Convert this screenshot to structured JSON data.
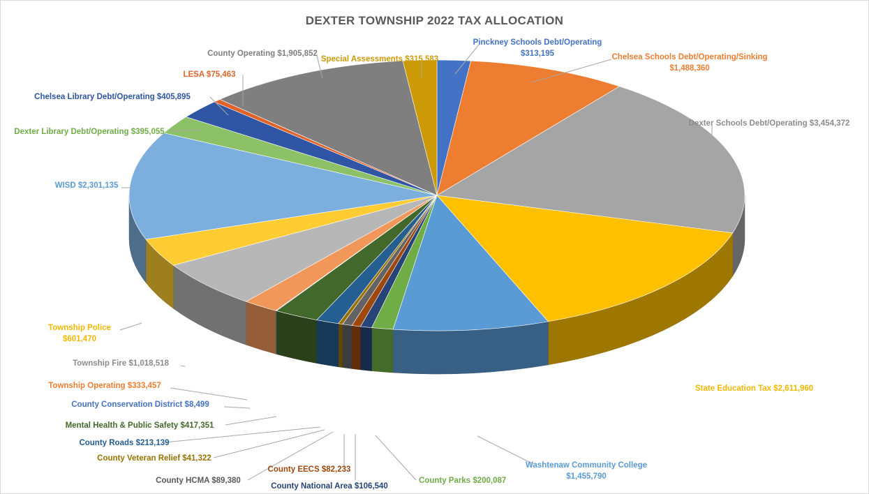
{
  "chart_data": {
    "type": "pie",
    "title": "DEXTER TOWNSHIP 2022 TAX ALLOCATION",
    "slices": [
      {
        "name": "Pinckney Schools Debt/Operating",
        "value": 313195,
        "display": "$313,195",
        "color": "#4472c4",
        "label_lines": [
          "Pinckney Schools Debt/Operating",
          "$313,195"
        ]
      },
      {
        "name": "Chelsea Schools Debt/Operating/Sinking",
        "value": 1488360,
        "display": "$1,488,360",
        "color": "#ed7d31",
        "label_lines": [
          "Chelsea Schools Debt/Operating/Sinking",
          "$1,488,360"
        ]
      },
      {
        "name": "Dexter Schools Debt/Operating",
        "value": 3454372,
        "display": "$3,454,372",
        "color": "#a5a5a5",
        "label_lines": [
          "Dexter Schools Debt/Operating $3,454,372"
        ]
      },
      {
        "name": "State Education Tax",
        "value": 2611960,
        "display": "$2,611,960",
        "color": "#ffc000",
        "label_lines": [
          "State Education Tax $2,611,960"
        ]
      },
      {
        "name": "Washtenaw Community College",
        "value": 1455790,
        "display": "$1,455,790",
        "color": "#5b9bd5",
        "label_lines": [
          "Washtenaw Community College",
          "$1,455,790"
        ]
      },
      {
        "name": "County Parks",
        "value": 200087,
        "display": "$200,087",
        "color": "#70ad47",
        "label_lines": [
          "County Parks $200,087"
        ]
      },
      {
        "name": "County National Area",
        "value": 106540,
        "display": "$106,540",
        "color": "#264478",
        "label_lines": [
          "County National Area $106,540"
        ]
      },
      {
        "name": "County EECS",
        "value": 82233,
        "display": "$82,233",
        "color": "#9e480e",
        "label_lines": [
          "County EECS $82,233"
        ]
      },
      {
        "name": "County HCMA",
        "value": 89380,
        "display": "$89,380",
        "color": "#636363",
        "label_lines": [
          "County HCMA $89,380"
        ]
      },
      {
        "name": "County Veteran Relief",
        "value": 41322,
        "display": "$41,322",
        "color": "#997300",
        "label_lines": [
          "County Veteran Relief $41,322"
        ]
      },
      {
        "name": "County Roads",
        "value": 213139,
        "display": "$213,139",
        "color": "#255e91",
        "label_lines": [
          "County Roads $213,139"
        ]
      },
      {
        "name": "Mental Health & Public Safety",
        "value": 417351,
        "display": "$417,351",
        "color": "#43682b",
        "label_lines": [
          "Mental Health & Public Safety $417,351"
        ]
      },
      {
        "name": "County Conservation District",
        "value": 8499,
        "display": "$8,499",
        "color": "#698ed0",
        "label_lines": [
          "County Conservation District $8,499"
        ]
      },
      {
        "name": "Township Operating",
        "value": 333457,
        "display": "$333,457",
        "color": "#f1975a",
        "label_lines": [
          "Township Operating $333,457"
        ]
      },
      {
        "name": "Township Fire",
        "value": 1018518,
        "display": "$1,018,518",
        "color": "#b7b7b7",
        "label_lines": [
          "Township Fire $1,018,518"
        ]
      },
      {
        "name": "Township Police",
        "value": 601470,
        "display": "$601,470",
        "color": "#ffcd33",
        "label_lines": [
          "Township Police",
          "$601,470"
        ]
      },
      {
        "name": "WISD",
        "value": 2301135,
        "display": "$2,301,135",
        "color": "#7cafdd",
        "label_lines": [
          "WISD $2,301,135"
        ]
      },
      {
        "name": "Dexter Library Debt/Operating",
        "value": 395055,
        "display": "$395,055",
        "color": "#8cc168",
        "label_lines": [
          "Dexter Library Debt/Operating $395,055"
        ]
      },
      {
        "name": "Chelsea Library Debt/Operating",
        "value": 405895,
        "display": "$405,895",
        "color": "#2f55a4",
        "label_lines": [
          "Chelsea Library Debt/Operating $405,895"
        ]
      },
      {
        "name": "LESA",
        "value": 75463,
        "display": "$75,463",
        "color": "#e0642a",
        "label_lines": [
          "LESA $75,463"
        ]
      },
      {
        "name": "County Operating",
        "value": 1905852,
        "display": "$1,905,852",
        "color": "#7f7f7f",
        "label_lines": [
          "County Operating $1,905,852"
        ]
      },
      {
        "name": "Special Assessments",
        "value": 315583,
        "display": "$315,583",
        "color": "#cc9a06",
        "label_lines": [
          "Special Assessments $315,583"
        ]
      }
    ],
    "label_colors": {
      "Pinckney Schools Debt/Operating": "#4472c4",
      "Chelsea Schools Debt/Operating/Sinking": "#ed7d31",
      "Dexter Schools Debt/Operating": "#8c8c8c",
      "State Education Tax": "#f2b800",
      "Washtenaw Community College": "#5b9bd5",
      "County Parks": "#70ad47",
      "County National Area": "#264478",
      "County EECS": "#9e480e",
      "County HCMA": "#595959",
      "County Veteran Relief": "#997300",
      "County Roads": "#255e91",
      "Mental Health & Public Safety": "#43682b",
      "County Conservation District": "#4472c4",
      "Township Operating": "#ed7d31",
      "Township Fire": "#8c8c8c",
      "Township Police": "#f2b800",
      "WISD": "#5b9bd5",
      "Dexter Library Debt/Operating": "#70ad47",
      "Chelsea Library Debt/Operating": "#2f55a4",
      "LESA": "#e0642a",
      "County Operating": "#7f7f7f",
      "Special Assessments": "#cc9a06"
    },
    "style": "3d-pie",
    "legend": "none",
    "data_labels": "outside-with-leader-lines"
  }
}
